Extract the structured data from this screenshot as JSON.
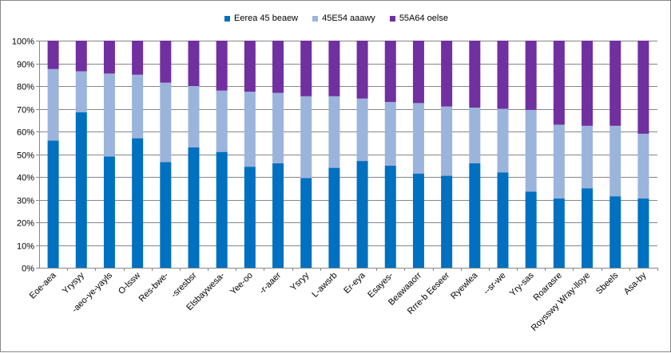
{
  "chart_data": {
    "type": "bar",
    "stacked": "percent",
    "categories": [
      "Eoe-aea",
      "Yrysyy",
      "-aeo-ye-yayls",
      "O-lssw",
      "Res-bwe-",
      "-sresbsr",
      "Elsbaywesa-",
      "Yee-oo",
      "-r-aaer",
      "Ysryy",
      "L-awsrb",
      "Er-eya",
      "Esayes-",
      "Beawaaorr",
      "Rrre-b Eeseer",
      "Ryewlea",
      "--sr-we",
      "Yry-sas",
      "Roarasre",
      "Roysswy Wray-lloye",
      "Sbeels",
      "Asa-by"
    ],
    "series": [
      {
        "name": "Eerea 45 beaew",
        "color": "#0070c0",
        "values": [
          56,
          68.5,
          49,
          57,
          46.5,
          53,
          51,
          44.5,
          46,
          39.5,
          44,
          47,
          45,
          41.5,
          40.5,
          46,
          42,
          33.5,
          30.5,
          35,
          31.5,
          30.5
        ]
      },
      {
        "name": "45E54 aaawy",
        "color": "#9bb4dc",
        "values": [
          31.5,
          18,
          36.5,
          28,
          35,
          27,
          27,
          33,
          31,
          36,
          31.5,
          27.5,
          28,
          31,
          30.5,
          24.5,
          28,
          36,
          32.5,
          27.5,
          31,
          28.5
        ]
      },
      {
        "name": "55A64 oelse",
        "color": "#7030a0",
        "values": [
          12.5,
          13.5,
          14.5,
          15,
          18.5,
          20,
          22,
          22.5,
          23,
          24.5,
          24.5,
          25.5,
          27,
          27.5,
          29,
          29.5,
          30,
          30.5,
          37,
          37.5,
          37.5,
          41
        ]
      }
    ],
    "ylim": [
      0,
      100
    ],
    "yticks": [
      "0%",
      "10%",
      "20%",
      "30%",
      "40%",
      "50%",
      "60%",
      "70%",
      "80%",
      "90%",
      "100%"
    ],
    "grid": "horizontal",
    "legend": "top-center",
    "title": "",
    "xlabel": "",
    "ylabel": ""
  }
}
